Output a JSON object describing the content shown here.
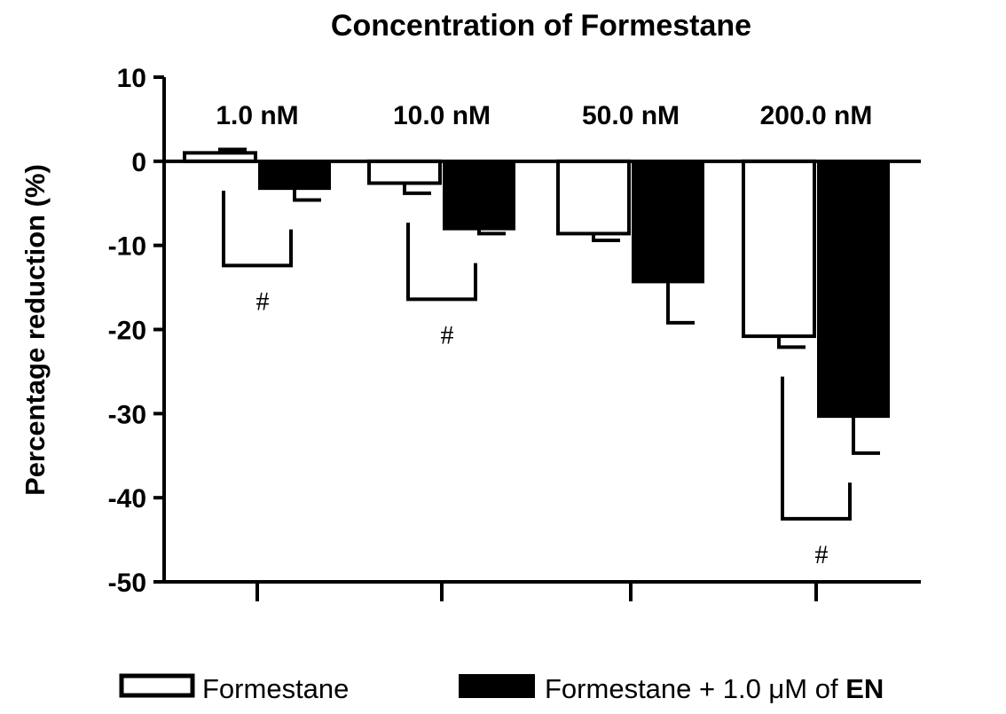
{
  "chart_data": {
    "type": "bar",
    "title": "Concentration of Formestane",
    "ylabel": "Percentage reduction (%)",
    "xlabel": "",
    "ylim": [
      -50,
      10
    ],
    "yticks": [
      10,
      0,
      -10,
      -20,
      -30,
      -40,
      -50
    ],
    "categories": [
      "1.0 nM",
      "10.0 nM",
      "50.0 nM",
      "200.0 nM"
    ],
    "series": [
      {
        "name": "Formestane",
        "values": [
          1.0,
          -2.6,
          -8.6,
          -20.8
        ],
        "errors": [
          0.4,
          1.2,
          0.8,
          1.3
        ],
        "color": "#ffffff"
      },
      {
        "name": "Formestane + 1.0 μM of EN",
        "values": [
          -3.3,
          -8.1,
          -14.4,
          -30.4
        ],
        "errors": [
          1.3,
          0.5,
          4.8,
          4.3
        ],
        "color": "#000000"
      }
    ],
    "significance": [
      {
        "label": "#",
        "category_index": 0
      },
      {
        "label": "#",
        "category_index": 1
      },
      {
        "label": "#",
        "category_index": 3
      }
    ],
    "legend": {
      "position": "bottom",
      "entries": [
        {
          "text": "Formestane"
        },
        {
          "text_prefix": "Formestane + 1.0 μM of ",
          "text_bold": "EN"
        }
      ]
    },
    "grid": false
  }
}
